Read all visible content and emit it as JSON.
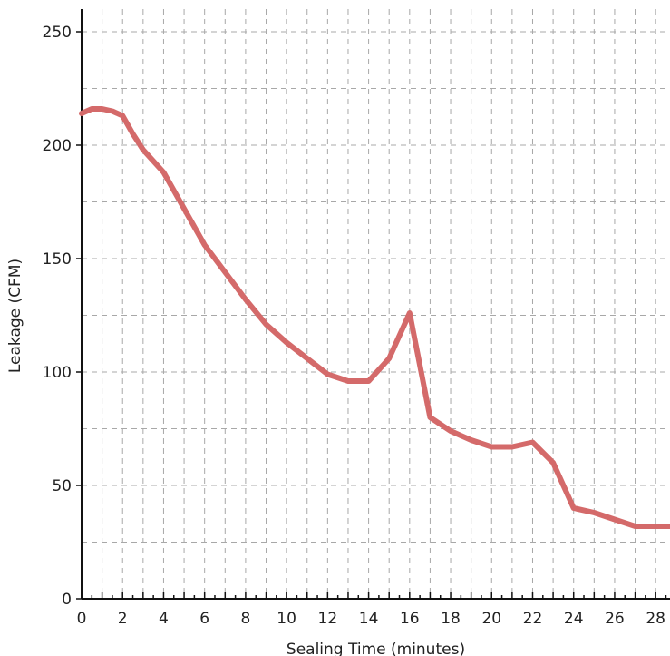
{
  "chart_data": {
    "type": "line",
    "xlabel": "Sealing Time (minutes)",
    "ylabel": "Leakage (CFM)",
    "xlim": [
      0,
      28.7
    ],
    "ylim": [
      0,
      260
    ],
    "x_ticks": [
      0,
      2,
      4,
      6,
      8,
      10,
      12,
      14,
      16,
      18,
      20,
      22,
      24,
      26,
      28
    ],
    "y_ticks": [
      0,
      50,
      100,
      150,
      200,
      250
    ],
    "grid": true,
    "grid_style": "dashed",
    "legend": false,
    "series": [
      {
        "color": "#d46a6a",
        "x": [
          0,
          0.5,
          1,
          1.5,
          2,
          2.5,
          3,
          4,
          5,
          6,
          7,
          8,
          9,
          10,
          11,
          12,
          13,
          14,
          15,
          16,
          17,
          18,
          19,
          20,
          21,
          22,
          23,
          24,
          25,
          26,
          27,
          28,
          28.7
        ],
        "y": [
          214,
          216,
          216,
          215,
          213,
          205,
          198,
          188,
          172,
          156,
          144,
          132,
          121,
          113,
          106,
          99,
          96,
          96,
          106,
          126,
          80,
          74,
          70,
          67,
          67,
          69,
          60,
          40,
          38,
          35,
          32,
          32,
          32
        ]
      }
    ]
  }
}
